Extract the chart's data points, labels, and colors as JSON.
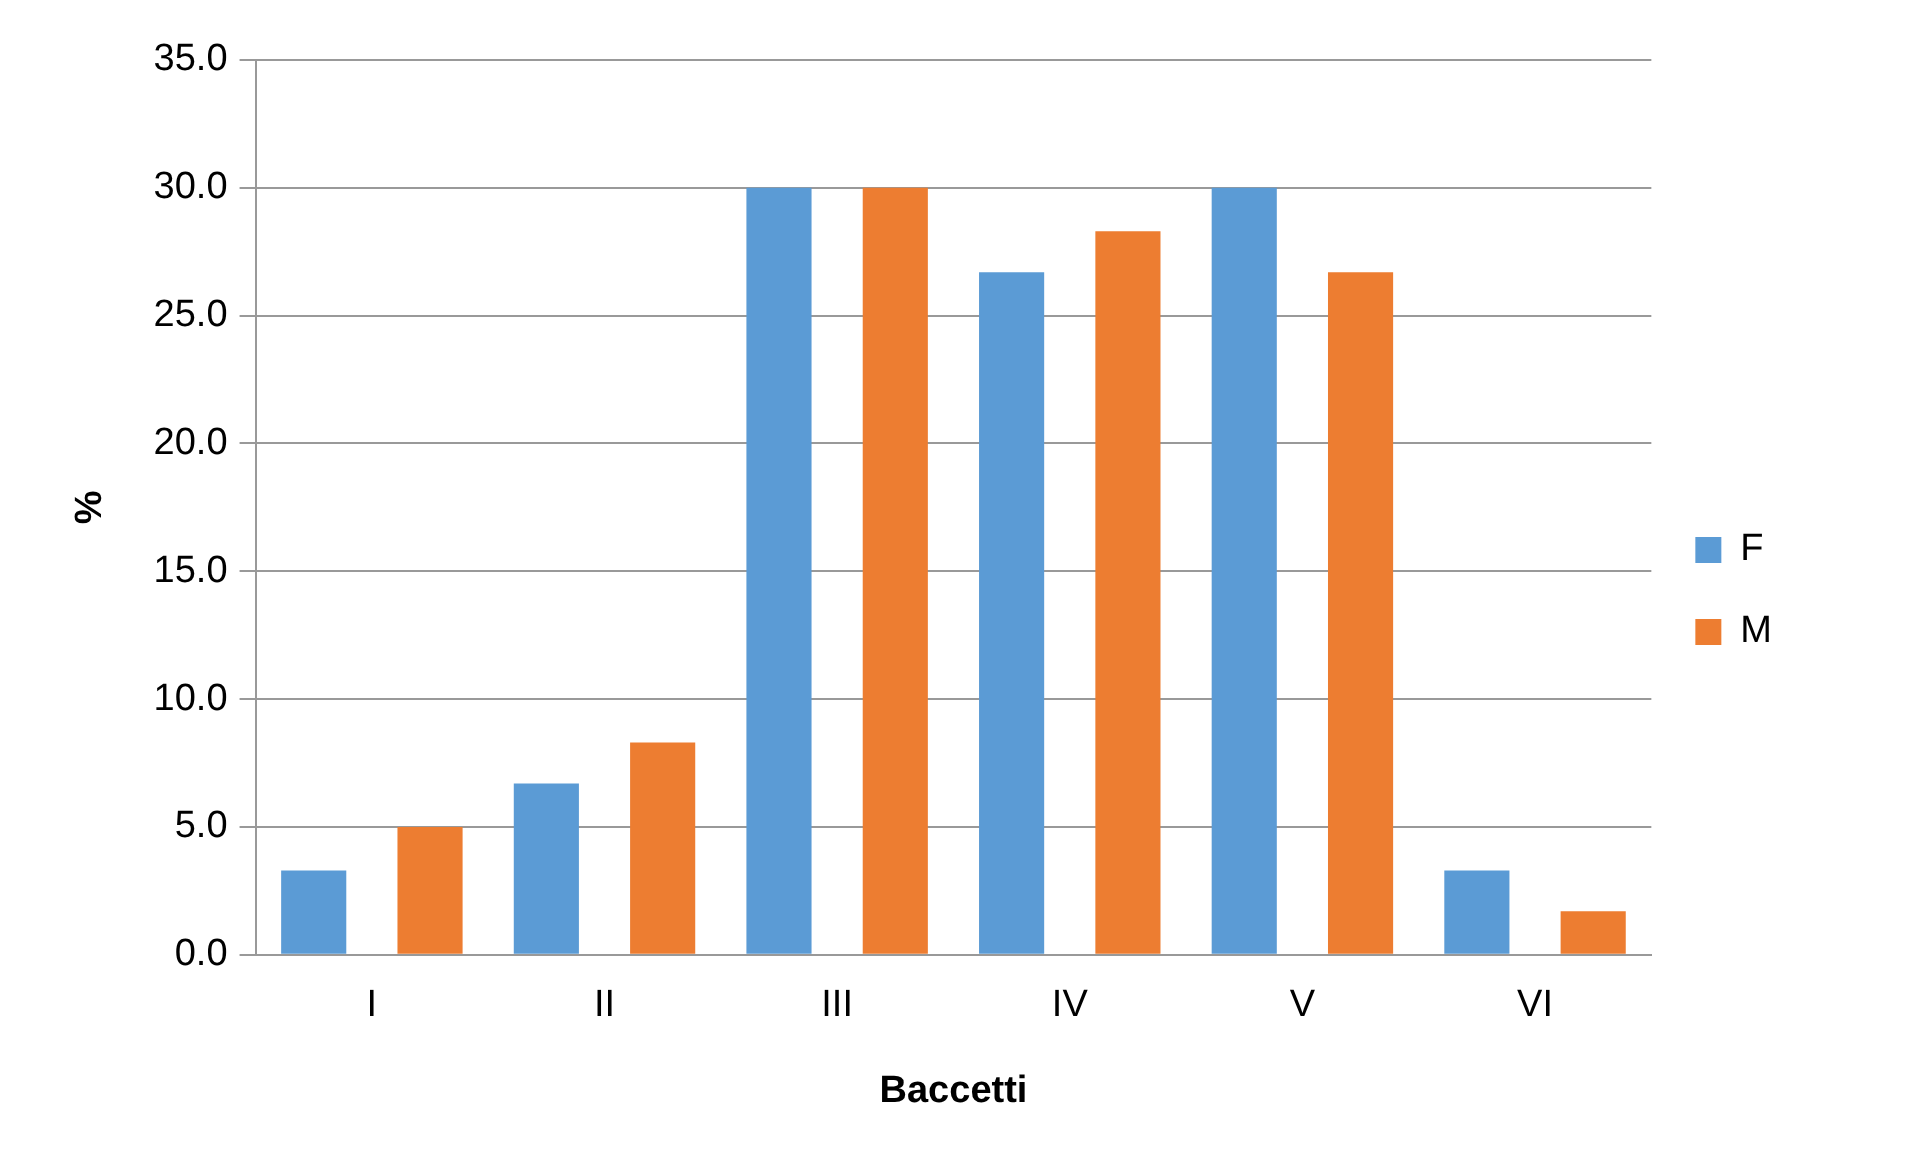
{
  "chart_data": {
    "type": "bar",
    "xlabel": "Baccetti",
    "ylabel": "%",
    "categories": [
      "I",
      "II",
      "III",
      "IV",
      "V",
      "VI"
    ],
    "series": [
      {
        "name": "F",
        "color": "#5b9bd5",
        "values": [
          3.3,
          6.7,
          30.0,
          26.7,
          30.0,
          3.3
        ]
      },
      {
        "name": "M",
        "color": "#ed7d31",
        "values": [
          5.0,
          8.3,
          30.0,
          28.3,
          26.7,
          1.7
        ]
      }
    ],
    "ylim": [
      0,
      35
    ],
    "yticks": [
      {
        "value": 0,
        "label": "0.0"
      },
      {
        "value": 5,
        "label": "5.0"
      },
      {
        "value": 10,
        "label": "10.0"
      },
      {
        "value": 15,
        "label": "15.0"
      },
      {
        "value": 20,
        "label": "20.0"
      },
      {
        "value": 25,
        "label": "25.0"
      },
      {
        "value": 30,
        "label": "30.0"
      },
      {
        "value": 35,
        "label": "35.0"
      }
    ],
    "grid": "y",
    "legend": "right"
  }
}
